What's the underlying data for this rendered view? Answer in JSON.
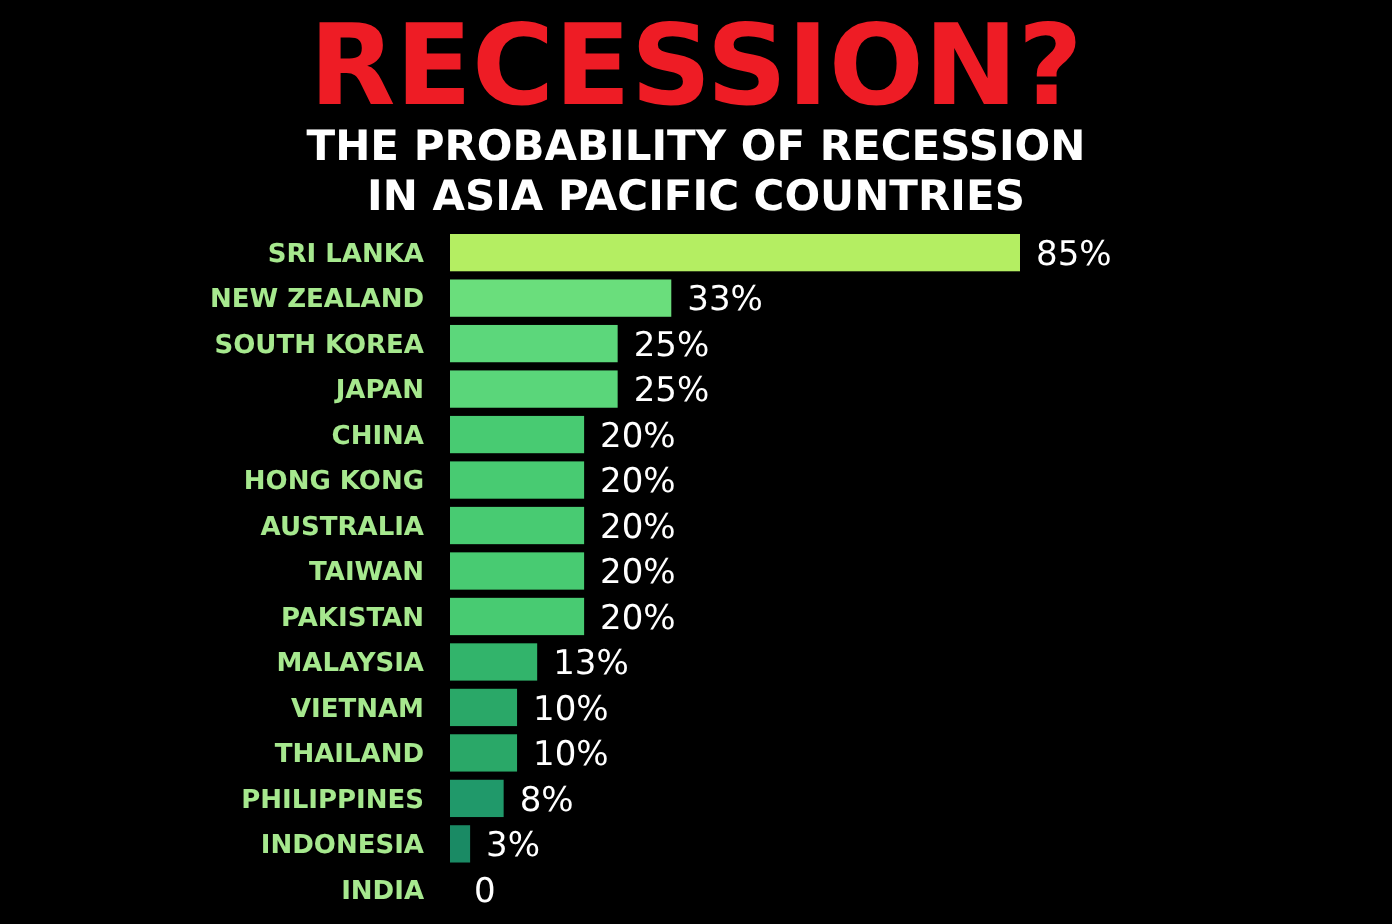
{
  "chart_data": {
    "type": "bar",
    "orientation": "horizontal",
    "relative": false,
    "title": "RECESSION?",
    "subtitle": "THE PROBABILITY OF RECESSION IN ASIA PACIFIC COUNTRIES",
    "categories": [
      "SRI LANKA",
      "NEW ZEALAND",
      "SOUTH KOREA",
      "JAPAN",
      "CHINA",
      "HONG KONG",
      "AUSTRALIA",
      "TAIWAN",
      "PAKISTAN",
      "MALAYSIA",
      "VIETNAM",
      "THAILAND",
      "PHILIPPINES",
      "INDONESIA",
      "INDIA"
    ],
    "values": [
      85,
      33,
      25,
      25,
      20,
      20,
      20,
      20,
      20,
      13,
      10,
      10,
      8,
      3,
      0
    ],
    "value_labels": [
      "85%",
      "33%",
      "25%",
      "25%",
      "20%",
      "20%",
      "20%",
      "20%",
      "20%",
      "13%",
      "10%",
      "10%",
      "8%",
      "3%",
      "0"
    ],
    "colors": [
      "#b4ee62",
      "#6ade7c",
      "#5cd77b",
      "#5ad67a",
      "#48cb72",
      "#48cb72",
      "#48cb72",
      "#48cb72",
      "#48cb72",
      "#32b46b",
      "#2aa868",
      "#2aa868",
      "#20996a",
      "#1a8a64",
      "#157a60"
    ]
  }
}
